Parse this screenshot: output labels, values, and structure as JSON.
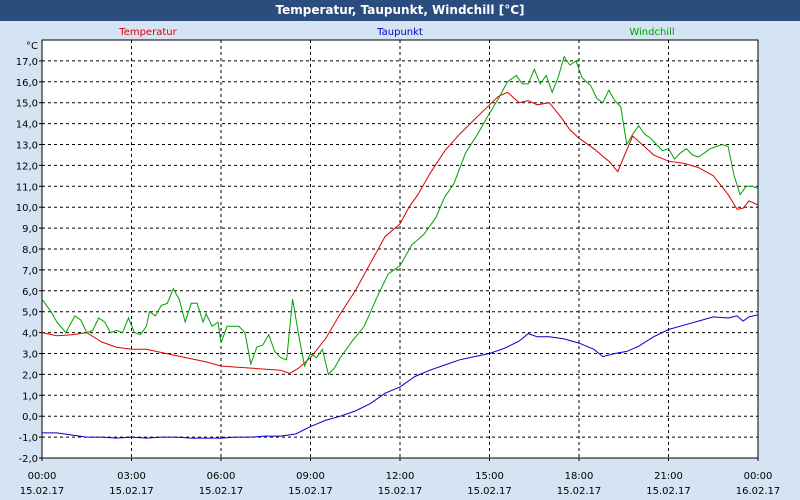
{
  "window": {
    "title": "Temperatur, Taupunkt, Windchill [°C]"
  },
  "colors": {
    "background": "#d4e4f3",
    "titlebar": "#2a4d7e",
    "plot": "#ffffff",
    "temperature": "#e00000",
    "dewpoint": "#0000cc",
    "windchill": "#00a000"
  },
  "chart_data": {
    "type": "line",
    "title": "Temperatur, Taupunkt, Windchill [°C]",
    "unit_label": "°C",
    "ylim": [
      -2,
      18
    ],
    "yticks": [
      "-2,0",
      "-1,0",
      "0,0",
      "1,0",
      "2,0",
      "3,0",
      "4,0",
      "5,0",
      "6,0",
      "7,0",
      "8,0",
      "9,0",
      "10,0",
      "11,0",
      "12,0",
      "13,0",
      "14,0",
      "15,0",
      "16,0",
      "17,0"
    ],
    "xlim": [
      0,
      24
    ],
    "xticks": [
      {
        "time": "00:00",
        "date": "15.02.17"
      },
      {
        "time": "03:00",
        "date": "15.02.17"
      },
      {
        "time": "06:00",
        "date": "15.02.17"
      },
      {
        "time": "09:00",
        "date": "15.02.17"
      },
      {
        "time": "12:00",
        "date": "15.02.17"
      },
      {
        "time": "15:00",
        "date": "15.02.17"
      },
      {
        "time": "18:00",
        "date": "15.02.17"
      },
      {
        "time": "21:00",
        "date": "15.02.17"
      },
      {
        "time": "00:00",
        "date": "16.02.17"
      }
    ],
    "grid": true,
    "series": [
      {
        "name": "Temperatur",
        "points": [
          [
            0,
            4.0
          ],
          [
            0.5,
            3.85
          ],
          [
            1,
            3.9
          ],
          [
            1.5,
            4.0
          ],
          [
            2,
            3.55
          ],
          [
            2.5,
            3.3
          ],
          [
            3,
            3.2
          ],
          [
            3.5,
            3.2
          ],
          [
            4,
            3.05
          ],
          [
            4.5,
            2.9
          ],
          [
            5,
            2.75
          ],
          [
            5.5,
            2.6
          ],
          [
            6,
            2.4
          ],
          [
            6.5,
            2.35
          ],
          [
            7,
            2.3
          ],
          [
            7.5,
            2.25
          ],
          [
            8,
            2.2
          ],
          [
            8.3,
            2.05
          ],
          [
            8.6,
            2.3
          ],
          [
            9,
            2.8
          ],
          [
            9.5,
            3.7
          ],
          [
            10,
            4.9
          ],
          [
            10.5,
            6.0
          ],
          [
            11,
            7.3
          ],
          [
            11.5,
            8.6
          ],
          [
            12,
            9.2
          ],
          [
            12.3,
            10.0
          ],
          [
            12.6,
            10.6
          ],
          [
            13,
            11.6
          ],
          [
            13.5,
            12.7
          ],
          [
            14,
            13.5
          ],
          [
            14.5,
            14.2
          ],
          [
            15,
            14.9
          ],
          [
            15.3,
            15.3
          ],
          [
            15.6,
            15.5
          ],
          [
            16,
            15.0
          ],
          [
            16.3,
            15.1
          ],
          [
            16.6,
            14.9
          ],
          [
            17,
            15.0
          ],
          [
            17.4,
            14.3
          ],
          [
            17.7,
            13.7
          ],
          [
            18,
            13.3
          ],
          [
            18.5,
            12.8
          ],
          [
            19,
            12.2
          ],
          [
            19.3,
            11.7
          ],
          [
            19.5,
            12.4
          ],
          [
            19.8,
            13.4
          ],
          [
            20.2,
            12.9
          ],
          [
            20.5,
            12.5
          ],
          [
            21,
            12.2
          ],
          [
            21.5,
            12.1
          ],
          [
            22,
            11.9
          ],
          [
            22.5,
            11.5
          ],
          [
            23,
            10.6
          ],
          [
            23.3,
            9.9
          ],
          [
            23.5,
            9.95
          ],
          [
            23.7,
            10.3
          ],
          [
            24,
            10.1
          ]
        ]
      },
      {
        "name": "Taupunkt",
        "points": [
          [
            0,
            -0.8
          ],
          [
            0.5,
            -0.8
          ],
          [
            1,
            -0.9
          ],
          [
            1.5,
            -1.0
          ],
          [
            2,
            -1.0
          ],
          [
            2.5,
            -1.05
          ],
          [
            3,
            -1.0
          ],
          [
            3.5,
            -1.05
          ],
          [
            4,
            -1.0
          ],
          [
            4.5,
            -1.0
          ],
          [
            5,
            -1.05
          ],
          [
            5.5,
            -1.05
          ],
          [
            6,
            -1.05
          ],
          [
            6.5,
            -1.0
          ],
          [
            7,
            -1.0
          ],
          [
            7.5,
            -0.95
          ],
          [
            8,
            -0.95
          ],
          [
            8.5,
            -0.85
          ],
          [
            9,
            -0.5
          ],
          [
            9.5,
            -0.2
          ],
          [
            10,
            0.0
          ],
          [
            10.5,
            0.25
          ],
          [
            11,
            0.6
          ],
          [
            11.5,
            1.1
          ],
          [
            12,
            1.4
          ],
          [
            12.5,
            1.9
          ],
          [
            13,
            2.2
          ],
          [
            13.5,
            2.45
          ],
          [
            14,
            2.7
          ],
          [
            14.5,
            2.85
          ],
          [
            15,
            3.0
          ],
          [
            15.5,
            3.25
          ],
          [
            16,
            3.6
          ],
          [
            16.3,
            3.95
          ],
          [
            16.6,
            3.8
          ],
          [
            17,
            3.8
          ],
          [
            17.5,
            3.7
          ],
          [
            18,
            3.5
          ],
          [
            18.5,
            3.2
          ],
          [
            18.8,
            2.85
          ],
          [
            19.2,
            3.0
          ],
          [
            19.6,
            3.1
          ],
          [
            20,
            3.35
          ],
          [
            20.5,
            3.8
          ],
          [
            21,
            4.15
          ],
          [
            21.5,
            4.35
          ],
          [
            22,
            4.55
          ],
          [
            22.5,
            4.75
          ],
          [
            23,
            4.7
          ],
          [
            23.3,
            4.8
          ],
          [
            23.5,
            4.55
          ],
          [
            23.7,
            4.75
          ],
          [
            24,
            4.85
          ]
        ]
      },
      {
        "name": "Windchill",
        "points": [
          [
            0,
            5.6
          ],
          [
            0.3,
            5.0
          ],
          [
            0.5,
            4.5
          ],
          [
            0.8,
            4.0
          ],
          [
            1.1,
            4.8
          ],
          [
            1.3,
            4.6
          ],
          [
            1.5,
            4.0
          ],
          [
            1.7,
            4.1
          ],
          [
            1.9,
            4.7
          ],
          [
            2.1,
            4.5
          ],
          [
            2.3,
            4.0
          ],
          [
            2.5,
            4.1
          ],
          [
            2.7,
            4.0
          ],
          [
            2.9,
            4.7
          ],
          [
            3.1,
            4.0
          ],
          [
            3.3,
            3.9
          ],
          [
            3.5,
            4.3
          ],
          [
            3.6,
            5.0
          ],
          [
            3.8,
            4.8
          ],
          [
            4.0,
            5.3
          ],
          [
            4.2,
            5.4
          ],
          [
            4.4,
            6.1
          ],
          [
            4.6,
            5.6
          ],
          [
            4.8,
            4.5
          ],
          [
            5.0,
            5.4
          ],
          [
            5.2,
            5.4
          ],
          [
            5.4,
            4.5
          ],
          [
            5.5,
            4.9
          ],
          [
            5.7,
            4.3
          ],
          [
            5.9,
            4.5
          ],
          [
            6.0,
            3.5
          ],
          [
            6.2,
            4.3
          ],
          [
            6.4,
            4.3
          ],
          [
            6.6,
            4.3
          ],
          [
            6.8,
            4.0
          ],
          [
            7.0,
            2.5
          ],
          [
            7.2,
            3.3
          ],
          [
            7.4,
            3.4
          ],
          [
            7.6,
            3.9
          ],
          [
            7.8,
            3.1
          ],
          [
            8.0,
            2.8
          ],
          [
            8.2,
            2.7
          ],
          [
            8.4,
            5.6
          ],
          [
            8.6,
            3.9
          ],
          [
            8.8,
            2.4
          ],
          [
            9.0,
            3.0
          ],
          [
            9.2,
            2.8
          ],
          [
            9.4,
            3.2
          ],
          [
            9.6,
            2.0
          ],
          [
            9.8,
            2.3
          ],
          [
            10.0,
            2.8
          ],
          [
            10.4,
            3.6
          ],
          [
            10.8,
            4.3
          ],
          [
            11.2,
            5.6
          ],
          [
            11.6,
            6.8
          ],
          [
            12.0,
            7.2
          ],
          [
            12.4,
            8.2
          ],
          [
            12.8,
            8.7
          ],
          [
            13.2,
            9.5
          ],
          [
            13.5,
            10.5
          ],
          [
            13.8,
            11.1
          ],
          [
            14.2,
            12.6
          ],
          [
            14.6,
            13.5
          ],
          [
            15.0,
            14.5
          ],
          [
            15.3,
            15.2
          ],
          [
            15.6,
            16.0
          ],
          [
            15.9,
            16.3
          ],
          [
            16.1,
            15.9
          ],
          [
            16.3,
            15.9
          ],
          [
            16.5,
            16.6
          ],
          [
            16.7,
            15.9
          ],
          [
            16.9,
            16.3
          ],
          [
            17.1,
            15.5
          ],
          [
            17.3,
            16.2
          ],
          [
            17.5,
            17.2
          ],
          [
            17.7,
            16.8
          ],
          [
            17.9,
            17.0
          ],
          [
            18.1,
            16.2
          ],
          [
            18.4,
            15.8
          ],
          [
            18.6,
            15.2
          ],
          [
            18.8,
            15.0
          ],
          [
            19.0,
            15.6
          ],
          [
            19.2,
            15.1
          ],
          [
            19.4,
            14.8
          ],
          [
            19.6,
            13.0
          ],
          [
            19.8,
            13.5
          ],
          [
            20.0,
            13.9
          ],
          [
            20.2,
            13.5
          ],
          [
            20.4,
            13.3
          ],
          [
            20.6,
            13.0
          ],
          [
            20.8,
            12.7
          ],
          [
            21.0,
            12.8
          ],
          [
            21.2,
            12.3
          ],
          [
            21.4,
            12.6
          ],
          [
            21.6,
            12.8
          ],
          [
            21.8,
            12.5
          ],
          [
            22.0,
            12.4
          ],
          [
            22.2,
            12.6
          ],
          [
            22.4,
            12.8
          ],
          [
            22.6,
            12.9
          ],
          [
            22.8,
            13.0
          ],
          [
            23.0,
            12.9
          ],
          [
            23.2,
            11.5
          ],
          [
            23.4,
            10.6
          ],
          [
            23.6,
            11.0
          ],
          [
            23.8,
            11.0
          ],
          [
            24,
            10.9
          ]
        ]
      }
    ]
  }
}
